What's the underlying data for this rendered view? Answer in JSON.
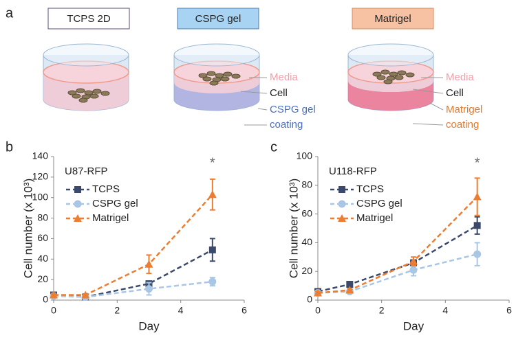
{
  "panel_labels": [
    "a",
    "b",
    "c"
  ],
  "diagram": {
    "dishes": [
      {
        "label": "TCPS 2D"
      },
      {
        "label": "CSPG gel",
        "annotations": [
          "Media",
          "Cell",
          "CSPG gel",
          "coating"
        ]
      },
      {
        "label": "Matrigel",
        "annotations": [
          "Media",
          "Cell",
          "Matrigel",
          "coating"
        ]
      }
    ]
  },
  "chart_data": [
    {
      "type": "line",
      "title": "U87-RFP",
      "x_label": "Day",
      "y_label": "Cell number (x 10³)",
      "x": [
        0,
        1,
        3,
        5
      ],
      "xlim": [
        0,
        6
      ],
      "xticks": [
        0,
        2,
        4,
        6
      ],
      "ylim": [
        0,
        140
      ],
      "yticks": [
        0,
        20,
        40,
        60,
        80,
        100,
        120,
        140
      ],
      "annotation": "*",
      "series": [
        {
          "name": "TCPS",
          "color": "#3b4a6b",
          "marker": "square",
          "values": [
            5,
            3,
            16,
            49
          ],
          "errors": [
            1,
            1,
            2,
            11
          ]
        },
        {
          "name": "CSPG gel",
          "color": "#a9c6e4",
          "marker": "circle",
          "values": [
            4,
            3,
            11,
            18
          ],
          "errors": [
            1,
            1,
            6,
            4
          ]
        },
        {
          "name": "Matrigel",
          "color": "#ed7d31",
          "marker": "triangle",
          "values": [
            5,
            5,
            35,
            103
          ],
          "errors": [
            1,
            1,
            9,
            15
          ]
        }
      ]
    },
    {
      "type": "line",
      "title": "U118-RFP",
      "x_label": "Day",
      "y_label": "Cell number (x 10³)",
      "x": [
        0,
        1,
        3,
        5
      ],
      "xlim": [
        0,
        6
      ],
      "xticks": [
        0,
        2,
        4,
        6
      ],
      "ylim": [
        0,
        100
      ],
      "yticks": [
        0,
        20,
        40,
        60,
        80,
        100
      ],
      "annotation": "*",
      "series": [
        {
          "name": "TCPS",
          "color": "#3b4a6b",
          "marker": "square",
          "values": [
            6,
            11,
            26,
            52
          ],
          "errors": [
            1,
            1,
            2,
            6
          ]
        },
        {
          "name": "CSPG gel",
          "color": "#a9c6e4",
          "marker": "circle",
          "values": [
            5,
            6,
            21,
            32
          ],
          "errors": [
            1,
            1,
            4,
            8
          ]
        },
        {
          "name": "Matrigel",
          "color": "#ed7d31",
          "marker": "triangle",
          "values": [
            5,
            7,
            27,
            72
          ],
          "errors": [
            1,
            1,
            3,
            13
          ]
        }
      ]
    }
  ]
}
